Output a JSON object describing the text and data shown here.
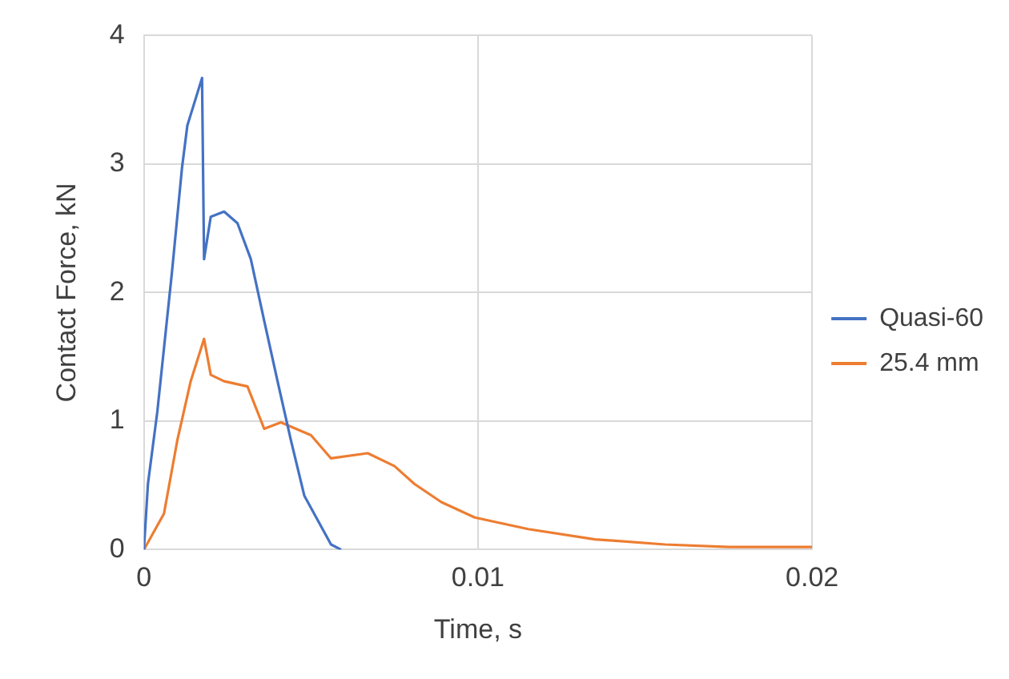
{
  "chart_data": {
    "type": "line",
    "xlabel": "Time, s",
    "ylabel": "Contact Force, kN",
    "xlim": [
      0,
      0.02
    ],
    "xticks": [
      0,
      0.01,
      0.02
    ],
    "ylim": [
      0,
      4
    ],
    "yticks": [
      0,
      1,
      2,
      3,
      4
    ],
    "grid": true,
    "legend": "right",
    "marker": "none",
    "line_style": "solid",
    "series": [
      {
        "name": "Quasi-60",
        "color": "#4472c4",
        "x": [
          0,
          0.00012,
          0.0004,
          0.00084,
          0.00114,
          0.0013,
          0.00174,
          0.0018,
          0.002,
          0.0024,
          0.0028,
          0.0032,
          0.0036,
          0.004,
          0.0044,
          0.0048,
          0.0056,
          0.0059
        ],
        "values": [
          0,
          0.51,
          1.07,
          2.16,
          2.97,
          3.3,
          3.67,
          2.26,
          2.59,
          2.63,
          2.54,
          2.26,
          1.78,
          1.31,
          0.85,
          0.42,
          0.04,
          0
        ]
      },
      {
        "name": "25.4 mm",
        "color": "#ed7d31",
        "x": [
          0,
          0.0003,
          0.0006,
          0.001,
          0.0014,
          0.0018,
          0.002,
          0.0024,
          0.0031,
          0.0036,
          0.0041,
          0.005,
          0.0056,
          0.0067,
          0.0075,
          0.0081,
          0.0089,
          0.0099,
          0.0115,
          0.0135,
          0.0156,
          0.0175,
          0.02
        ],
        "values": [
          0,
          0.14,
          0.28,
          0.85,
          1.31,
          1.64,
          1.36,
          1.31,
          1.27,
          0.94,
          0.99,
          0.89,
          0.71,
          0.75,
          0.65,
          0.51,
          0.37,
          0.25,
          0.16,
          0.08,
          0.04,
          0.02,
          0.02
        ]
      }
    ]
  }
}
